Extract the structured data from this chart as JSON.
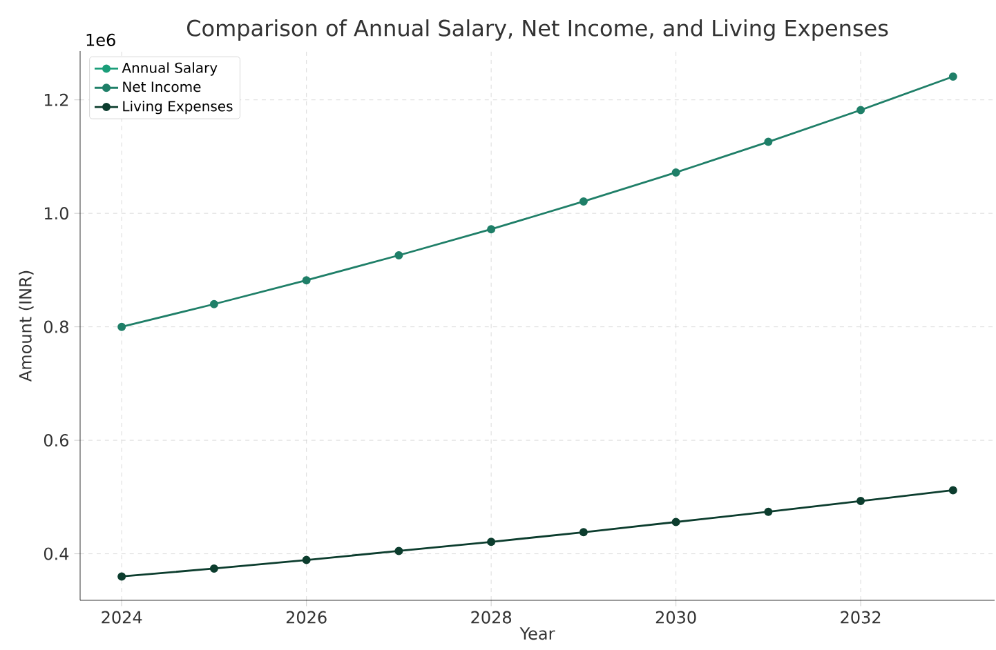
{
  "chart_data": {
    "type": "line",
    "title": "Comparison of Annual Salary, Net Income, and Living Expenses",
    "xlabel": "Year",
    "ylabel": "Amount (INR)",
    "x": [
      2024,
      2025,
      2026,
      2027,
      2028,
      2029,
      2030,
      2031,
      2032,
      2033
    ],
    "series": [
      {
        "name": "Annual Salary",
        "color": "#1b9e7a",
        "values": [
          null,
          null,
          null,
          null,
          null,
          null,
          null,
          null,
          null,
          null
        ]
      },
      {
        "name": "Net Income",
        "color": "#1f7f68",
        "values": [
          0.8,
          0.84,
          0.882,
          0.926,
          0.972,
          1.021,
          1.072,
          1.126,
          1.182,
          1.241
        ]
      },
      {
        "name": "Living Expenses",
        "color": "#0c3d2e",
        "values": [
          0.36,
          0.374,
          0.389,
          0.405,
          0.421,
          0.438,
          0.456,
          0.474,
          0.493,
          0.512
        ]
      }
    ],
    "xlim": [
      2023.55,
      2033.45
    ],
    "ylim": [
      0.318,
      1.286
    ],
    "xticks": [
      2024,
      2026,
      2028,
      2030,
      2032
    ],
    "yticks": [
      0.4,
      0.6,
      0.8,
      {
        "value": 1,
        "label": "1.0"
      },
      1.2
    ],
    "annotations": [
      "1e6"
    ],
    "grid": true,
    "legend": "top left",
    "marker": "circle",
    "line_style": "solid"
  }
}
